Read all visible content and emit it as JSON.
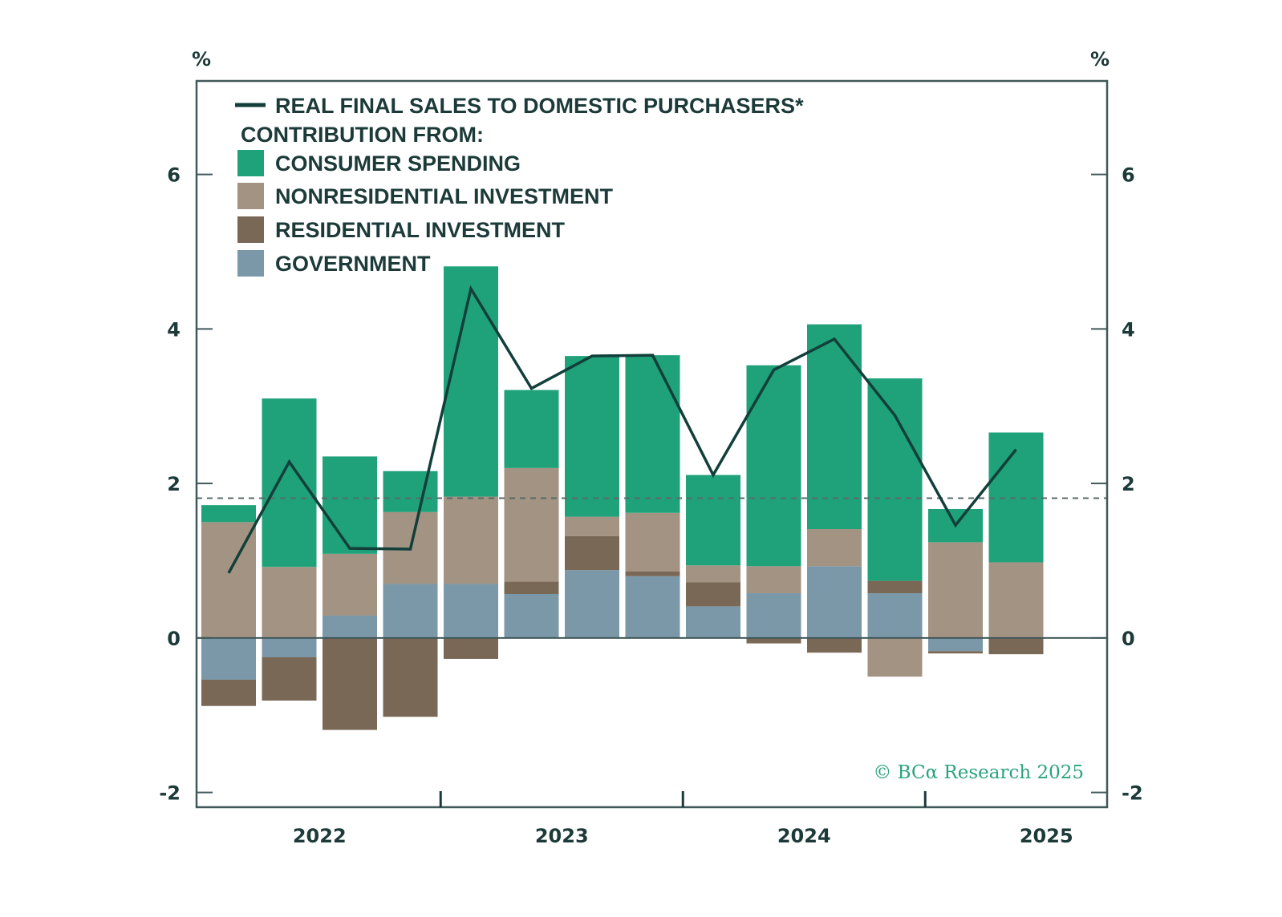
{
  "chart_data": {
    "type": "bar",
    "subtype": "stacked bar with line overlay",
    "title": "",
    "ylabel_left": "%",
    "ylabel_right": "%",
    "ylim": [
      -2.19,
      7.21
    ],
    "yticks": [
      -2,
      0,
      2,
      4,
      6
    ],
    "ytick_labels": [
      "-2",
      "0",
      "2",
      "4",
      "6"
    ],
    "x_year_labels": [
      "2022",
      "2023",
      "2024",
      "2025"
    ],
    "quarters": [
      "2022Q1",
      "2022Q2",
      "2022Q3",
      "2022Q4",
      "2023Q1",
      "2023Q2",
      "2023Q3",
      "2023Q4",
      "2024Q1",
      "2024Q2",
      "2024Q3",
      "2024Q4",
      "2025Q1",
      "2025Q2"
    ],
    "reference_line": {
      "value": 1.81,
      "style": "dashed"
    },
    "line_series": {
      "name": "REAL FINAL SALES TO DOMESTIC PURCHASERS*",
      "color": "#123f3a",
      "values": [
        0.84,
        2.28,
        1.16,
        1.15,
        4.52,
        3.23,
        3.65,
        3.66,
        2.11,
        3.47,
        3.87,
        2.88,
        1.46,
        2.44
      ]
    },
    "series": [
      {
        "name": "GOVERNMENT",
        "color": "#7b98a9",
        "values": [
          -0.54,
          -0.25,
          0.29,
          0.7,
          0.7,
          0.57,
          0.88,
          0.8,
          0.41,
          0.58,
          0.93,
          0.58,
          -0.17,
          0.0
        ]
      },
      {
        "name": "RESIDENTIAL INVESTMENT",
        "color": "#7a6856",
        "values": [
          -0.34,
          -0.56,
          -1.19,
          -1.02,
          -0.27,
          0.16,
          0.44,
          0.06,
          0.31,
          -0.07,
          -0.19,
          0.16,
          -0.03,
          -0.21
        ]
      },
      {
        "name": "NONRESIDENTIAL INVESTMENT",
        "color": "#a39382",
        "values": [
          1.5,
          0.92,
          0.8,
          0.93,
          1.13,
          1.47,
          0.25,
          0.76,
          0.22,
          0.35,
          0.48,
          -0.5,
          1.24,
          0.98
        ]
      },
      {
        "name": "CONSUMER SPENDING",
        "color": "#1fa27a",
        "values": [
          0.22,
          2.18,
          1.26,
          0.53,
          2.98,
          1.01,
          2.08,
          2.04,
          1.17,
          2.6,
          2.65,
          2.62,
          0.43,
          1.68
        ]
      }
    ],
    "legend": {
      "placement": "top-left",
      "line_label": "REAL FINAL SALES TO DOMESTIC PURCHASERS*",
      "heading": "CONTRIBUTION FROM:",
      "items": [
        {
          "label": "CONSUMER SPENDING",
          "color": "#1fa27a"
        },
        {
          "label": "NONRESIDENTIAL INVESTMENT",
          "color": "#a39382"
        },
        {
          "label": "RESIDENTIAL INVESTMENT",
          "color": "#7a6856"
        },
        {
          "label": "GOVERNMENT",
          "color": "#7b98a9"
        }
      ]
    },
    "annotation": "© BCα Research 2025",
    "grid": false
  }
}
